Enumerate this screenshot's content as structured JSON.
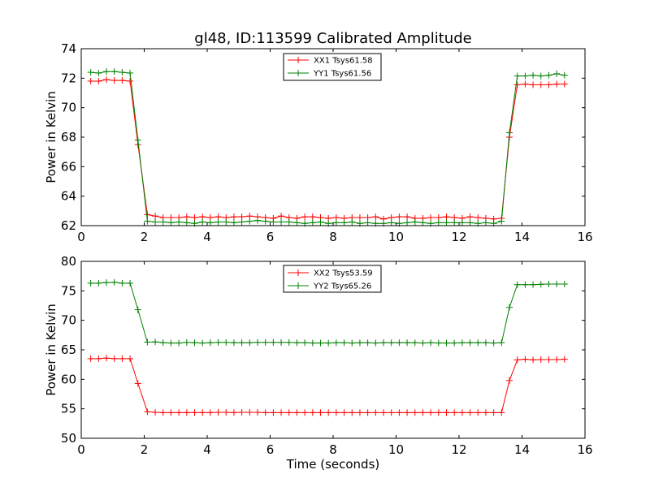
{
  "figure": {
    "title": "gl48, ID:113599 Calibrated Amplitude"
  },
  "chart_data": [
    {
      "type": "line",
      "title": "gl48, ID:113599 Calibrated Amplitude",
      "xlabel": "",
      "ylabel": "Power in Kelvin",
      "xlim": [
        0,
        16
      ],
      "ylim": [
        62,
        74
      ],
      "xticks": [
        0,
        2,
        4,
        6,
        8,
        10,
        12,
        14,
        16
      ],
      "yticks": [
        62,
        64,
        66,
        68,
        70,
        72,
        74
      ],
      "grid": false,
      "legend_position": "top-center",
      "x": [
        0.3,
        0.55,
        0.8,
        1.05,
        1.3,
        1.55,
        1.8,
        2.1,
        2.35,
        2.6,
        2.85,
        3.1,
        3.35,
        3.6,
        3.85,
        4.1,
        4.35,
        4.6,
        4.85,
        5.1,
        5.35,
        5.6,
        5.85,
        6.1,
        6.35,
        6.6,
        6.85,
        7.1,
        7.35,
        7.6,
        7.85,
        8.1,
        8.35,
        8.6,
        8.85,
        9.1,
        9.35,
        9.6,
        9.85,
        10.1,
        10.35,
        10.6,
        10.85,
        11.1,
        11.35,
        11.6,
        11.85,
        12.1,
        12.35,
        12.6,
        12.85,
        13.1,
        13.35,
        13.6,
        13.85,
        14.1,
        14.35,
        14.6,
        14.85,
        15.1,
        15.35
      ],
      "series": [
        {
          "name": "XX1 Tsys61.58",
          "color": "#ff0000",
          "values": [
            71.8,
            71.8,
            71.9,
            71.85,
            71.85,
            71.8,
            67.5,
            62.75,
            62.65,
            62.55,
            62.55,
            62.55,
            62.6,
            62.55,
            62.6,
            62.55,
            62.6,
            62.55,
            62.6,
            62.6,
            62.65,
            62.6,
            62.55,
            62.5,
            62.65,
            62.55,
            62.5,
            62.6,
            62.6,
            62.55,
            62.5,
            62.55,
            62.5,
            62.55,
            62.55,
            62.55,
            62.6,
            62.45,
            62.55,
            62.6,
            62.6,
            62.5,
            62.5,
            62.55,
            62.55,
            62.6,
            62.55,
            62.5,
            62.6,
            62.55,
            62.5,
            62.45,
            62.5,
            68.0,
            71.55,
            71.6,
            71.55,
            71.55,
            71.55,
            71.6,
            71.6
          ]
        },
        {
          "name": "YY1 Tsys61.56",
          "color": "#008000",
          "values": [
            72.4,
            72.35,
            72.45,
            72.45,
            72.4,
            72.35,
            67.8,
            62.3,
            62.25,
            62.25,
            62.2,
            62.25,
            62.2,
            62.15,
            62.25,
            62.2,
            62.25,
            62.25,
            62.2,
            62.25,
            62.3,
            62.35,
            62.3,
            62.25,
            62.25,
            62.25,
            62.2,
            62.15,
            62.2,
            62.25,
            62.15,
            62.2,
            62.2,
            62.25,
            62.15,
            62.2,
            62.15,
            62.15,
            62.2,
            62.15,
            62.2,
            62.25,
            62.2,
            62.15,
            62.2,
            62.2,
            62.2,
            62.2,
            62.2,
            62.15,
            62.2,
            62.15,
            62.3,
            68.3,
            72.15,
            72.15,
            72.2,
            72.15,
            72.2,
            72.3,
            72.2
          ]
        }
      ]
    },
    {
      "type": "line",
      "title": "",
      "xlabel": "Time (seconds)",
      "ylabel": "Power in Kelvin",
      "xlim": [
        0,
        16
      ],
      "ylim": [
        50,
        80
      ],
      "xticks": [
        0,
        2,
        4,
        6,
        8,
        10,
        12,
        14,
        16
      ],
      "yticks": [
        50,
        55,
        60,
        65,
        70,
        75,
        80
      ],
      "grid": false,
      "legend_position": "top-center",
      "x": [
        0.3,
        0.55,
        0.8,
        1.05,
        1.3,
        1.55,
        1.8,
        2.1,
        2.35,
        2.6,
        2.85,
        3.1,
        3.35,
        3.6,
        3.85,
        4.1,
        4.35,
        4.6,
        4.85,
        5.1,
        5.35,
        5.6,
        5.85,
        6.1,
        6.35,
        6.6,
        6.85,
        7.1,
        7.35,
        7.6,
        7.85,
        8.1,
        8.35,
        8.6,
        8.85,
        9.1,
        9.35,
        9.6,
        9.85,
        10.1,
        10.35,
        10.6,
        10.85,
        11.1,
        11.35,
        11.6,
        11.85,
        12.1,
        12.35,
        12.6,
        12.85,
        13.1,
        13.35,
        13.6,
        13.85,
        14.1,
        14.35,
        14.6,
        14.85,
        15.1,
        15.35
      ],
      "series": [
        {
          "name": "XX2 Tsys53.59",
          "color": "#ff0000",
          "values": [
            63.5,
            63.5,
            63.6,
            63.5,
            63.5,
            63.5,
            59.3,
            54.5,
            54.4,
            54.35,
            54.35,
            54.35,
            54.35,
            54.35,
            54.35,
            54.35,
            54.4,
            54.4,
            54.35,
            54.4,
            54.4,
            54.4,
            54.35,
            54.35,
            54.35,
            54.35,
            54.35,
            54.35,
            54.35,
            54.35,
            54.35,
            54.35,
            54.35,
            54.35,
            54.35,
            54.35,
            54.35,
            54.35,
            54.35,
            54.35,
            54.35,
            54.35,
            54.35,
            54.35,
            54.35,
            54.35,
            54.35,
            54.35,
            54.35,
            54.35,
            54.35,
            54.35,
            54.35,
            59.8,
            63.3,
            63.4,
            63.3,
            63.35,
            63.35,
            63.35,
            63.4
          ]
        },
        {
          "name": "YY2 Tsys65.26",
          "color": "#008000",
          "values": [
            76.3,
            76.3,
            76.4,
            76.45,
            76.3,
            76.3,
            71.8,
            66.3,
            66.35,
            66.2,
            66.15,
            66.15,
            66.25,
            66.2,
            66.15,
            66.2,
            66.25,
            66.25,
            66.2,
            66.2,
            66.2,
            66.25,
            66.25,
            66.25,
            66.25,
            66.25,
            66.2,
            66.2,
            66.15,
            66.15,
            66.15,
            66.2,
            66.2,
            66.15,
            66.2,
            66.2,
            66.15,
            66.2,
            66.2,
            66.2,
            66.2,
            66.2,
            66.15,
            66.2,
            66.15,
            66.15,
            66.15,
            66.2,
            66.2,
            66.2,
            66.2,
            66.15,
            66.2,
            72.2,
            76.05,
            76.05,
            76.05,
            76.1,
            76.15,
            76.15,
            76.15
          ]
        }
      ]
    }
  ]
}
